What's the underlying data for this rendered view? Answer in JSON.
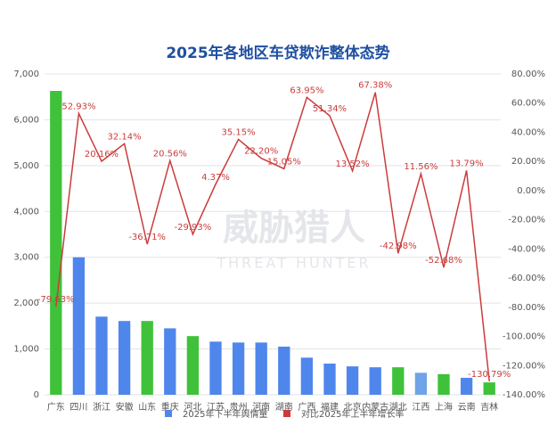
{
  "chart_data": {
    "type": "bar-line",
    "title": "2025年各地区车贷欺诈整体态势",
    "watermark": "威胁猎人",
    "watermark_sub": "THREAT HUNTER",
    "categories": [
      "广东",
      "四川",
      "浙江",
      "安徽",
      "山东",
      "重庆",
      "河北",
      "江苏",
      "贵州",
      "河南",
      "湖南",
      "广西",
      "福建",
      "北京",
      "内蒙古",
      "湖北",
      "江西",
      "上海",
      "云南",
      "吉林"
    ],
    "series": [
      {
        "name": "2025年下半年舆情量",
        "color": "#4f86ec",
        "colors": [
          "#3fc23a",
          "#4f86ec",
          "#4f86ec",
          "#4f86ec",
          "#3fc23a",
          "#4f86ec",
          "#3fc23a",
          "#4f86ec",
          "#4f86ec",
          "#4f86ec",
          "#4f86ec",
          "#4f86ec",
          "#4f86ec",
          "#4f86ec",
          "#4f86ec",
          "#3fc23a",
          "#6fa3e8",
          "#3fc23a",
          "#4f86ec",
          "#3fc23a"
        ],
        "values": [
          6630,
          3000,
          1705,
          1610,
          1610,
          1450,
          1280,
          1160,
          1140,
          1140,
          1050,
          810,
          680,
          620,
          600,
          600,
          480,
          450,
          370,
          270
        ]
      },
      {
        "name": "对比2025年上半年增长率",
        "color": "#cc3b3b",
        "axis": "y2",
        "values": [
          -79.63,
          52.93,
          20.16,
          32.14,
          -36.71,
          20.56,
          -29.93,
          4.37,
          35.15,
          22.2,
          15.05,
          63.95,
          51.34,
          13.52,
          67.38,
          -42.98,
          11.56,
          -52.68,
          13.79,
          -130.79
        ],
        "value_labels": [
          "-79.63%",
          "52.93%",
          "20.16%",
          "32.14%",
          "-36.71%",
          "20.56%",
          "-29.93%",
          "4.37%",
          "35.15%",
          "22.20%",
          "15.05%",
          "63.95%",
          "51.34%",
          "13.52%",
          "67.38%",
          "-42.98%",
          "11.56%",
          "-52.68%",
          "13.79%",
          "-130.79%"
        ]
      }
    ],
    "ylim": [
      0,
      7000
    ],
    "yticks": [
      0,
      {
        "value": 1000,
        "label": "1,000"
      },
      {
        "value": 2000,
        "label": "2,000"
      },
      {
        "value": 3000,
        "label": "3,000"
      },
      {
        "value": 4000,
        "label": "4,000"
      },
      {
        "value": 5000,
        "label": "5,000"
      },
      {
        "value": 6000,
        "label": "6,000"
      },
      {
        "value": 7000,
        "label": "7,000"
      }
    ],
    "y2lim": [
      -140,
      80
    ],
    "y2ticks": [
      {
        "value": -140,
        "label": "-140.00%"
      },
      {
        "value": -120,
        "label": "-120.00%"
      },
      {
        "value": -100,
        "label": "-100.00%"
      },
      {
        "value": -80,
        "label": "-80.00%"
      },
      {
        "value": -60,
        "label": "-60.00%"
      },
      {
        "value": -40,
        "label": "-40.00%"
      },
      {
        "value": -20,
        "label": "-20.00%"
      },
      {
        "value": 0,
        "label": "0.00%"
      },
      {
        "value": 20,
        "label": "20.00%"
      },
      {
        "value": 40,
        "label": "40.00%"
      },
      {
        "value": 60,
        "label": "60.00%"
      },
      {
        "value": 80,
        "label": "80.00%"
      }
    ],
    "grid": true
  }
}
